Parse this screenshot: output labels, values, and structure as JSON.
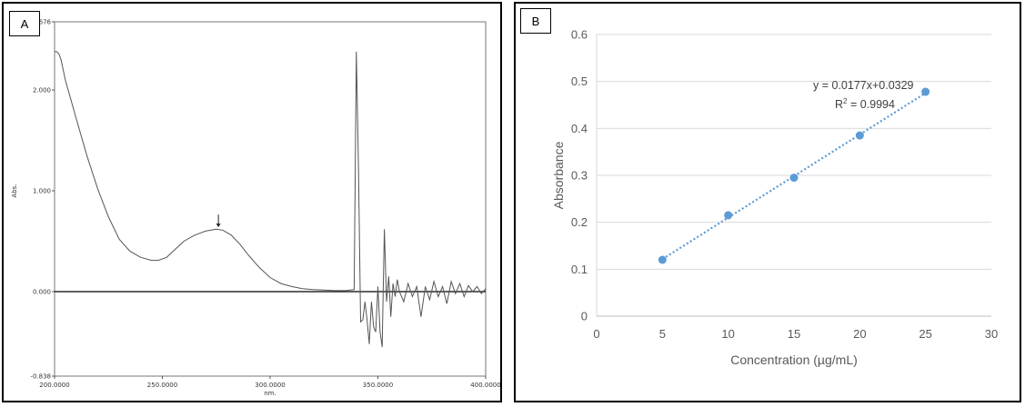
{
  "panels": {
    "a": {
      "label": "A"
    },
    "b": {
      "label": "B"
    }
  },
  "chart_data": [
    {
      "type": "line",
      "panel": "A",
      "xlabel": "nm.",
      "ylabel": "Abs.",
      "xlim": [
        200,
        400
      ],
      "ylim": [
        -0.838,
        2.676
      ],
      "xticks": [
        "200.0000",
        "250.0000",
        "300.0000",
        "350.0000",
        "400.0000"
      ],
      "yticks": [
        "-0.838",
        "0.000",
        "1.000",
        "2.000",
        "2.676"
      ],
      "peak_marker": {
        "x": 276,
        "y": 0.62
      },
      "series": [
        {
          "color": "#555555",
          "x": [
            200,
            201,
            202,
            203,
            205,
            210,
            215,
            220,
            225,
            230,
            235,
            240,
            245,
            248,
            252,
            256,
            260,
            265,
            270,
            275,
            278,
            282,
            286,
            290,
            295,
            300,
            305,
            310,
            315,
            320,
            325,
            330,
            335,
            339,
            340,
            341,
            342,
            343,
            344,
            345,
            346,
            347,
            348,
            349,
            350,
            351,
            352,
            353,
            354,
            355,
            356,
            357,
            358,
            359,
            360,
            362,
            364,
            366,
            368,
            370,
            372,
            374,
            376,
            378,
            380,
            382,
            384,
            386,
            388,
            390,
            392,
            394,
            396,
            398,
            400
          ],
          "y": [
            2.38,
            2.38,
            2.36,
            2.3,
            2.1,
            1.72,
            1.35,
            1.02,
            0.74,
            0.52,
            0.4,
            0.34,
            0.31,
            0.31,
            0.34,
            0.42,
            0.5,
            0.56,
            0.6,
            0.62,
            0.61,
            0.56,
            0.47,
            0.36,
            0.24,
            0.14,
            0.08,
            0.05,
            0.03,
            0.02,
            0.015,
            0.01,
            0.01,
            0.02,
            2.38,
            1.2,
            -0.3,
            -0.28,
            -0.1,
            -0.28,
            -0.52,
            -0.1,
            -0.35,
            -0.4,
            0.05,
            -0.4,
            -0.55,
            0.62,
            -0.1,
            0.15,
            -0.25,
            0.08,
            -0.05,
            0.12,
            0.0,
            -0.1,
            0.08,
            -0.05,
            0.05,
            -0.25,
            0.05,
            -0.08,
            0.1,
            -0.05,
            0.05,
            -0.12,
            0.1,
            -0.02,
            0.08,
            -0.05,
            0.06,
            0.0,
            0.05,
            -0.02,
            0.03
          ]
        }
      ]
    },
    {
      "type": "scatter",
      "panel": "B",
      "xlabel": "Concentration (µg/mL)",
      "ylabel": "Absorbance",
      "xlim": [
        0,
        30
      ],
      "ylim": [
        0,
        0.6
      ],
      "xticks": [
        "0",
        "5",
        "10",
        "15",
        "20",
        "25",
        "30"
      ],
      "yticks": [
        "0",
        "0.1",
        "0.2",
        "0.3",
        "0.4",
        "0.5",
        "0.6"
      ],
      "grid": "horizontal",
      "marker_color": "#5b9bd5",
      "trendline": {
        "style": "dotted",
        "slope": 0.0177,
        "intercept": 0.0329
      },
      "equation": "y = 0.0177x+0.0329",
      "r2_prefix": "R",
      "r2_sup": "2",
      "r2_value": " = 0.9994",
      "x": [
        5,
        10,
        15,
        20,
        25
      ],
      "y": [
        0.12,
        0.215,
        0.295,
        0.385,
        0.478
      ]
    }
  ]
}
